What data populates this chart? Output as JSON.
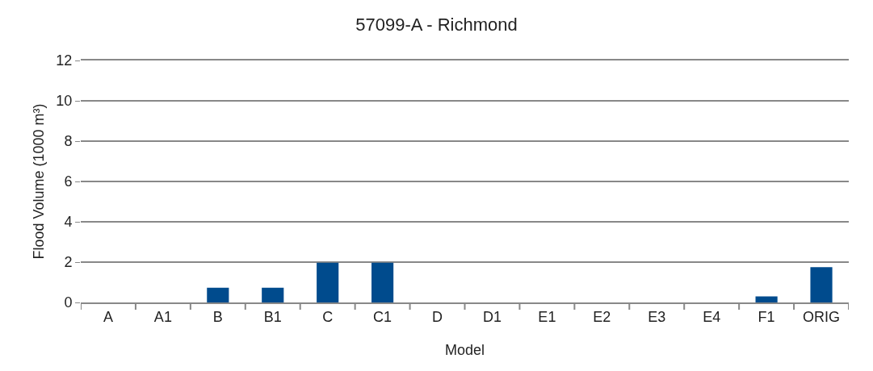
{
  "chart_data": {
    "type": "bar",
    "title": "57099-A - Richmond",
    "xlabel": "Model",
    "ylabel": "Flood Volume (1000 m³)",
    "categories": [
      "A",
      "A1",
      "B",
      "B1",
      "C",
      "C1",
      "D",
      "D1",
      "E1",
      "E2",
      "E3",
      "E4",
      "F1",
      "ORIG"
    ],
    "values": [
      0,
      0,
      0.73,
      0.73,
      1.97,
      1.97,
      0,
      0,
      0,
      0,
      0,
      0,
      0.3,
      1.75
    ],
    "color": "#004b8d",
    "ylim": [
      0,
      12
    ],
    "yticks": [
      0,
      2,
      4,
      6,
      8,
      10,
      12
    ],
    "grid": "y"
  }
}
